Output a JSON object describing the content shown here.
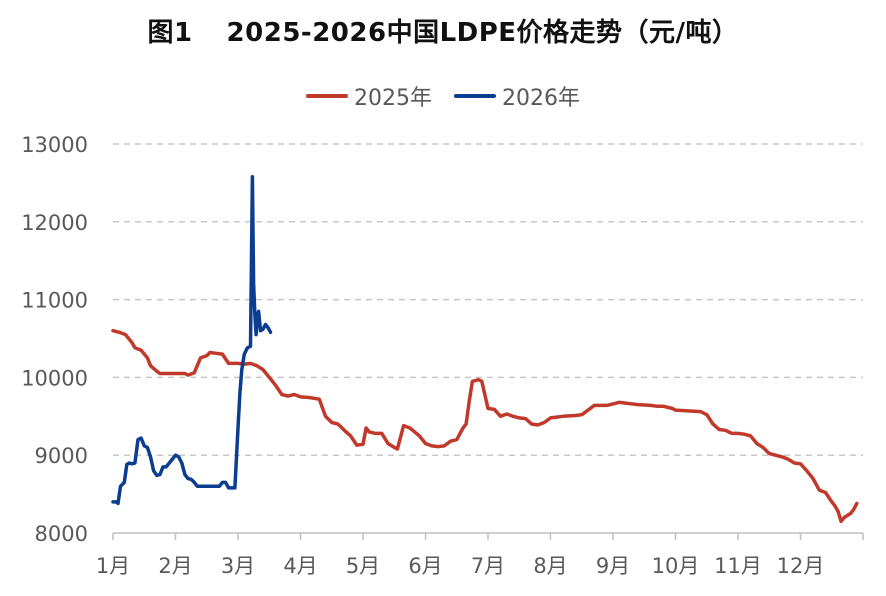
{
  "chart_data": {
    "type": "line",
    "title_prefix": "图1",
    "title": "2025-2026中国LDPE价格走势（元/吨）",
    "xlabel": "",
    "ylabel": "",
    "ylim": [
      8000,
      13000
    ],
    "yticks": [
      "8000",
      "9000",
      "10000",
      "11000",
      "12000",
      "13000"
    ],
    "x_range": [
      0,
      12
    ],
    "xticks": [
      "1月",
      "2月",
      "3月",
      "4月",
      "5月",
      "6月",
      "7月",
      "8月",
      "9月",
      "10月",
      "11月",
      "12月"
    ],
    "grid": true,
    "legend_position": "top",
    "series": [
      {
        "name": "2025年",
        "color": "#c0392b",
        "points": [
          [
            0.0,
            10600
          ],
          [
            0.1,
            10580
          ],
          [
            0.2,
            10550
          ],
          [
            0.3,
            10450
          ],
          [
            0.35,
            10380
          ],
          [
            0.45,
            10350
          ],
          [
            0.55,
            10250
          ],
          [
            0.6,
            10150
          ],
          [
            0.7,
            10080
          ],
          [
            0.75,
            10050
          ],
          [
            1.0,
            10050
          ],
          [
            1.15,
            10050
          ],
          [
            1.2,
            10030
          ],
          [
            1.3,
            10060
          ],
          [
            1.4,
            10250
          ],
          [
            1.5,
            10280
          ],
          [
            1.55,
            10320
          ],
          [
            1.65,
            10310
          ],
          [
            1.75,
            10300
          ],
          [
            1.85,
            10180
          ],
          [
            2.0,
            10180
          ],
          [
            2.1,
            10170
          ],
          [
            2.2,
            10180
          ],
          [
            2.3,
            10150
          ],
          [
            2.4,
            10100
          ],
          [
            2.5,
            10000
          ],
          [
            2.6,
            9900
          ],
          [
            2.7,
            9780
          ],
          [
            2.8,
            9760
          ],
          [
            2.9,
            9780
          ],
          [
            3.0,
            9750
          ],
          [
            3.15,
            9740
          ],
          [
            3.3,
            9720
          ],
          [
            3.4,
            9500
          ],
          [
            3.5,
            9420
          ],
          [
            3.6,
            9400
          ],
          [
            3.7,
            9320
          ],
          [
            3.8,
            9250
          ],
          [
            3.9,
            9130
          ],
          [
            4.0,
            9140
          ],
          [
            4.05,
            9350
          ],
          [
            4.1,
            9300
          ],
          [
            4.2,
            9280
          ],
          [
            4.3,
            9280
          ],
          [
            4.4,
            9150
          ],
          [
            4.5,
            9100
          ],
          [
            4.55,
            9080
          ],
          [
            4.65,
            9380
          ],
          [
            4.75,
            9350
          ],
          [
            4.9,
            9250
          ],
          [
            5.0,
            9150
          ],
          [
            5.1,
            9120
          ],
          [
            5.2,
            9110
          ],
          [
            5.3,
            9120
          ],
          [
            5.4,
            9180
          ],
          [
            5.5,
            9200
          ],
          [
            5.6,
            9350
          ],
          [
            5.65,
            9400
          ],
          [
            5.7,
            9700
          ],
          [
            5.75,
            9950
          ],
          [
            5.85,
            9970
          ],
          [
            5.9,
            9950
          ],
          [
            6.0,
            9600
          ],
          [
            6.1,
            9590
          ],
          [
            6.2,
            9500
          ],
          [
            6.3,
            9530
          ],
          [
            6.4,
            9500
          ],
          [
            6.5,
            9480
          ],
          [
            6.6,
            9470
          ],
          [
            6.7,
            9400
          ],
          [
            6.8,
            9390
          ],
          [
            6.9,
            9420
          ],
          [
            7.0,
            9480
          ],
          [
            7.1,
            9490
          ],
          [
            7.2,
            9500
          ],
          [
            7.4,
            9510
          ],
          [
            7.5,
            9520
          ],
          [
            7.6,
            9580
          ],
          [
            7.7,
            9640
          ],
          [
            7.8,
            9640
          ],
          [
            7.9,
            9640
          ],
          [
            8.0,
            9660
          ],
          [
            8.1,
            9680
          ],
          [
            8.2,
            9670
          ],
          [
            8.4,
            9650
          ],
          [
            8.6,
            9640
          ],
          [
            8.7,
            9630
          ],
          [
            8.8,
            9630
          ],
          [
            8.95,
            9600
          ],
          [
            9.0,
            9580
          ],
          [
            9.2,
            9570
          ],
          [
            9.4,
            9560
          ],
          [
            9.5,
            9520
          ],
          [
            9.6,
            9400
          ],
          [
            9.7,
            9330
          ],
          [
            9.8,
            9320
          ],
          [
            9.9,
            9280
          ],
          [
            10.0,
            9280
          ],
          [
            10.1,
            9270
          ],
          [
            10.2,
            9250
          ],
          [
            10.3,
            9150
          ],
          [
            10.4,
            9100
          ],
          [
            10.5,
            9020
          ],
          [
            10.6,
            9000
          ],
          [
            10.7,
            8980
          ],
          [
            10.8,
            8950
          ],
          [
            10.9,
            8900
          ],
          [
            11.0,
            8890
          ],
          [
            11.1,
            8800
          ],
          [
            11.2,
            8700
          ],
          [
            11.3,
            8550
          ],
          [
            11.4,
            8520
          ],
          [
            11.5,
            8400
          ],
          [
            11.55,
            8350
          ],
          [
            11.6,
            8280
          ],
          [
            11.65,
            8150
          ],
          [
            11.7,
            8200
          ],
          [
            11.8,
            8250
          ],
          [
            11.85,
            8300
          ],
          [
            11.9,
            8380
          ]
        ]
      },
      {
        "name": "2026年",
        "color": "#0b3d91",
        "points": [
          [
            0.0,
            8400
          ],
          [
            0.05,
            8400
          ],
          [
            0.08,
            8380
          ],
          [
            0.12,
            8600
          ],
          [
            0.18,
            8650
          ],
          [
            0.22,
            8880
          ],
          [
            0.26,
            8900
          ],
          [
            0.3,
            8890
          ],
          [
            0.35,
            8900
          ],
          [
            0.4,
            9200
          ],
          [
            0.45,
            9220
          ],
          [
            0.5,
            9120
          ],
          [
            0.55,
            9100
          ],
          [
            0.6,
            8980
          ],
          [
            0.65,
            8800
          ],
          [
            0.7,
            8740
          ],
          [
            0.75,
            8750
          ],
          [
            0.8,
            8850
          ],
          [
            0.85,
            8850
          ],
          [
            0.9,
            8900
          ],
          [
            0.95,
            8950
          ],
          [
            1.0,
            9000
          ],
          [
            1.05,
            8980
          ],
          [
            1.1,
            8900
          ],
          [
            1.15,
            8750
          ],
          [
            1.2,
            8700
          ],
          [
            1.25,
            8690
          ],
          [
            1.3,
            8650
          ],
          [
            1.35,
            8600
          ],
          [
            1.4,
            8600
          ],
          [
            1.5,
            8600
          ],
          [
            1.6,
            8600
          ],
          [
            1.7,
            8600
          ],
          [
            1.75,
            8650
          ],
          [
            1.8,
            8650
          ],
          [
            1.85,
            8580
          ],
          [
            1.9,
            8580
          ],
          [
            1.95,
            8580
          ],
          [
            2.0,
            9350
          ],
          [
            2.03,
            9800
          ],
          [
            2.06,
            10100
          ],
          [
            2.1,
            10300
          ],
          [
            2.15,
            10380
          ],
          [
            2.2,
            10400
          ],
          [
            2.23,
            12580
          ],
          [
            2.25,
            11200
          ],
          [
            2.27,
            10800
          ],
          [
            2.29,
            10550
          ],
          [
            2.31,
            10800
          ],
          [
            2.33,
            10850
          ],
          [
            2.36,
            10600
          ],
          [
            2.4,
            10620
          ],
          [
            2.44,
            10680
          ],
          [
            2.48,
            10640
          ],
          [
            2.52,
            10580
          ]
        ]
      }
    ]
  }
}
